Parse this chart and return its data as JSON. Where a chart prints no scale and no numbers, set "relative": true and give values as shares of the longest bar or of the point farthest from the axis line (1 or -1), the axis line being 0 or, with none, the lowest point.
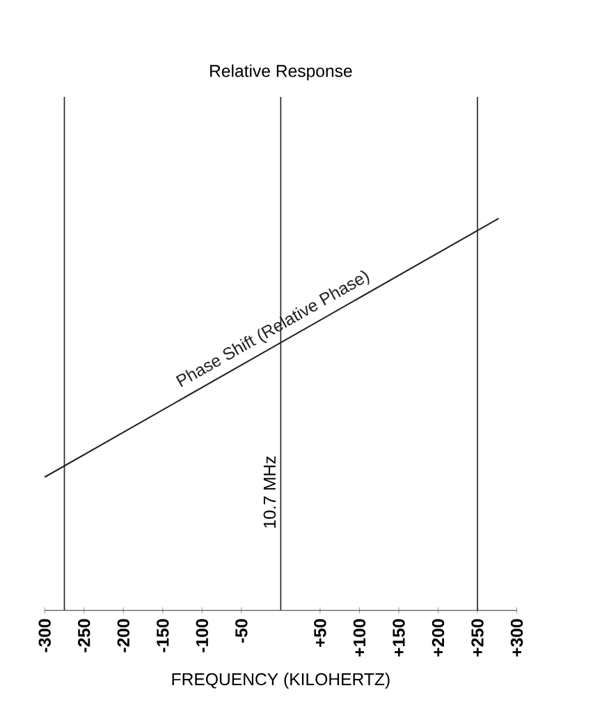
{
  "chart_data": {
    "type": "line",
    "title": "Relative Response",
    "xlabel": "FREQUENCY (KILOHERTZ)",
    "relative": true,
    "xlim": [
      -300,
      300
    ],
    "xticks": [
      -300,
      -250,
      -200,
      -150,
      -100,
      -50,
      {
        "value": 50,
        "label": "+50"
      },
      {
        "value": 100,
        "label": "+100"
      },
      {
        "value": 150,
        "label": "+150"
      },
      {
        "value": 200,
        "label": "+200"
      },
      {
        "value": 250,
        "label": "+250"
      },
      {
        "value": 300,
        "label": "+300"
      }
    ],
    "tick_labels": "x",
    "series": [
      {
        "color": "#222222",
        "x": [
          -300,
          277
        ],
        "values": [
          0.34,
          1
        ]
      }
    ],
    "annotations": [
      "Phase Shift (Relative Phase)"
    ],
    "ref_lines": [
      {
        "axis": "x",
        "value": -275,
        "color": "#222222"
      },
      {
        "axis": "x",
        "value": 0,
        "label": "10.7 MHz",
        "color": "#222222"
      },
      {
        "axis": "x",
        "value": 250,
        "color": "#222222"
      }
    ]
  }
}
